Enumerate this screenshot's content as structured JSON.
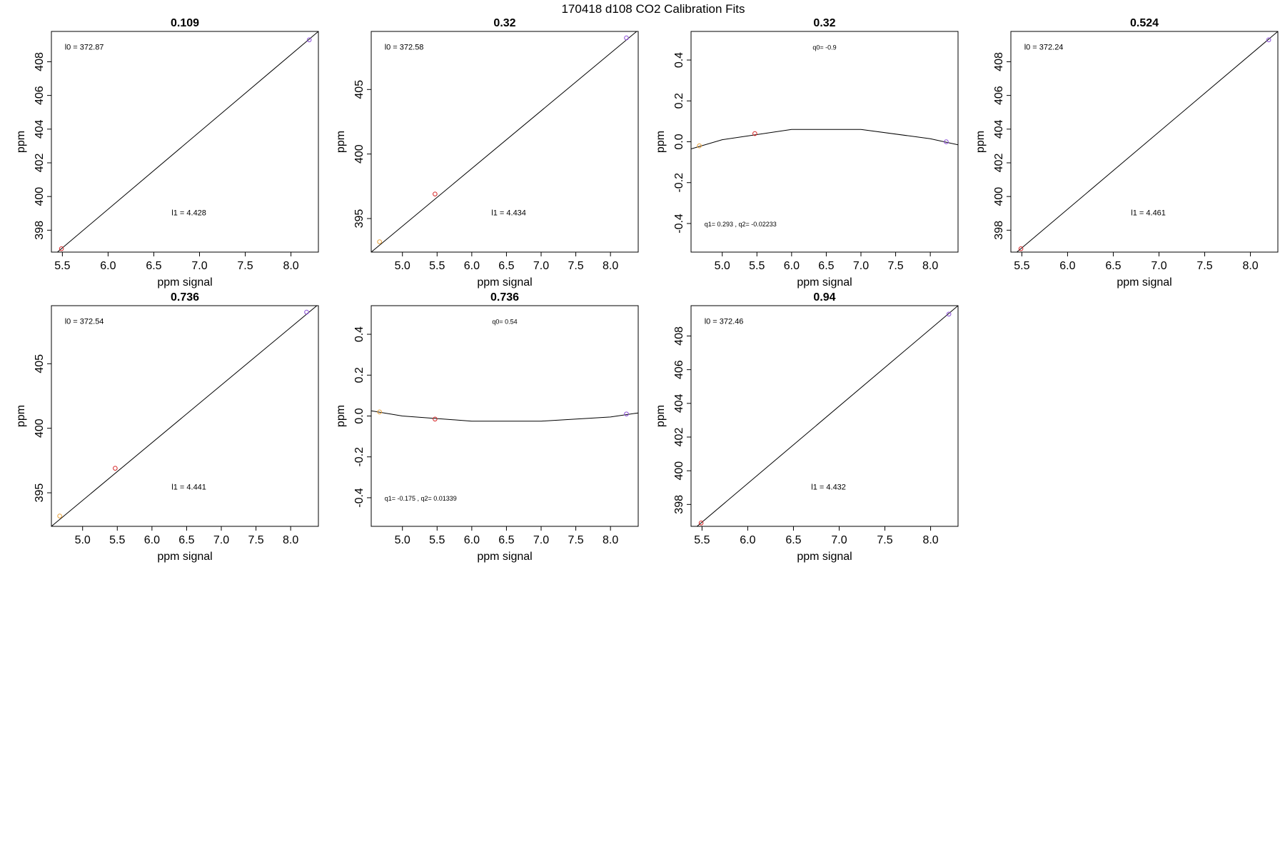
{
  "page": {
    "title": "170418   d108   CO2 Calibration Fits"
  },
  "colors": {
    "line": "#000000",
    "frame": "#000000",
    "point_orange": "#e8a23c",
    "point_red": "#d62728",
    "point_purple": "#8c4fd8"
  },
  "chart_data": [
    {
      "type": "scatter",
      "title": "0.109",
      "xlabel": "ppm signal",
      "ylabel": "ppm",
      "xlim": [
        5.38,
        8.3
      ],
      "ylim": [
        396.7,
        409.8
      ],
      "xticks": [
        "5.5",
        "6.0",
        "6.5",
        "7.0",
        "7.5",
        "8.0"
      ],
      "xtick_values": [
        5.5,
        6.0,
        6.5,
        7.0,
        7.5,
        8.0
      ],
      "yticks": [
        "398",
        "400",
        "402",
        "404",
        "406",
        "408"
      ],
      "ytick_values": [
        398,
        400,
        402,
        404,
        406,
        408
      ],
      "points": [
        {
          "x": 5.49,
          "y": 396.9,
          "color": "red"
        },
        {
          "x": 8.2,
          "y": 409.3,
          "color": "purple"
        }
      ],
      "fit_line": {
        "kind": "linear",
        "x": [
          5.38,
          8.3
        ],
        "y": [
          396.4,
          409.8
        ]
      },
      "annotations": [
        {
          "text": "l0 =  372.87",
          "size": "lg",
          "ax": 0.05,
          "ay": 0.07
        },
        {
          "text": "l1 =  4.428",
          "size": "lg",
          "ax": 0.45,
          "ay": 0.82
        }
      ]
    },
    {
      "type": "scatter",
      "title": "0.32",
      "xlabel": "ppm signal",
      "ylabel": "ppm",
      "xlim": [
        4.55,
        8.4
      ],
      "ylim": [
        392.4,
        409.5
      ],
      "xticks": [
        "5.0",
        "5.5",
        "6.0",
        "6.5",
        "7.0",
        "7.5",
        "8.0"
      ],
      "xtick_values": [
        5.0,
        5.5,
        6.0,
        6.5,
        7.0,
        7.5,
        8.0
      ],
      "yticks": [
        "395",
        "400",
        "405"
      ],
      "ytick_values": [
        395,
        400,
        405
      ],
      "points": [
        {
          "x": 4.67,
          "y": 393.2,
          "color": "orange"
        },
        {
          "x": 5.47,
          "y": 396.9,
          "color": "red"
        },
        {
          "x": 8.23,
          "y": 409.0,
          "color": "purple"
        }
      ],
      "fit_line": {
        "kind": "linear",
        "x": [
          4.55,
          8.4
        ],
        "y": [
          392.4,
          409.6
        ]
      },
      "annotations": [
        {
          "text": "l0 =  372.58",
          "size": "lg",
          "ax": 0.05,
          "ay": 0.07
        },
        {
          "text": "l1 =  4.434",
          "size": "lg",
          "ax": 0.45,
          "ay": 0.82
        }
      ]
    },
    {
      "type": "scatter",
      "title": "0.32",
      "xlabel": "ppm signal",
      "ylabel": "ppm",
      "xlim": [
        4.55,
        8.4
      ],
      "ylim": [
        -0.54,
        0.54
      ],
      "xticks": [
        "5.0",
        "5.5",
        "6.0",
        "6.5",
        "7.0",
        "7.5",
        "8.0"
      ],
      "xtick_values": [
        5.0,
        5.5,
        6.0,
        6.5,
        7.0,
        7.5,
        8.0
      ],
      "yticks": [
        "-0.4",
        "-0.2",
        "0.0",
        "0.2",
        "0.4"
      ],
      "ytick_values": [
        -0.4,
        -0.2,
        0.0,
        0.2,
        0.4
      ],
      "points": [
        {
          "x": 4.67,
          "y": -0.02,
          "color": "orange"
        },
        {
          "x": 5.47,
          "y": 0.04,
          "color": "red"
        },
        {
          "x": 8.23,
          "y": 0.0,
          "color": "purple"
        }
      ],
      "fit_line": {
        "kind": "polyline",
        "x": [
          4.55,
          5.0,
          6.0,
          7.0,
          8.0,
          8.4
        ],
        "y": [
          -0.035,
          0.01,
          0.06,
          0.06,
          0.015,
          -0.015
        ]
      },
      "annotations": [
        {
          "text": "q0= -0.9",
          "size": "sm",
          "ax": 0.5,
          "ay": 0.07,
          "anchor": "middle"
        },
        {
          "text": "q1= 0.293 , q2= -0.02233",
          "size": "sm",
          "ax": 0.05,
          "ay": 0.87
        }
      ]
    },
    {
      "type": "scatter",
      "title": "0.524",
      "xlabel": "ppm signal",
      "ylabel": "ppm",
      "xlim": [
        5.38,
        8.3
      ],
      "ylim": [
        396.7,
        409.8
      ],
      "xticks": [
        "5.5",
        "6.0",
        "6.5",
        "7.0",
        "7.5",
        "8.0"
      ],
      "xtick_values": [
        5.5,
        6.0,
        6.5,
        7.0,
        7.5,
        8.0
      ],
      "yticks": [
        "398",
        "400",
        "402",
        "404",
        "406",
        "408"
      ],
      "ytick_values": [
        398,
        400,
        402,
        404,
        406,
        408
      ],
      "points": [
        {
          "x": 5.49,
          "y": 396.9,
          "color": "red"
        },
        {
          "x": 8.2,
          "y": 409.3,
          "color": "purple"
        }
      ],
      "fit_line": {
        "kind": "linear",
        "x": [
          5.38,
          8.3
        ],
        "y": [
          396.4,
          409.8
        ]
      },
      "annotations": [
        {
          "text": "l0 =  372.24",
          "size": "lg",
          "ax": 0.05,
          "ay": 0.07
        },
        {
          "text": "l1 =  4.461",
          "size": "lg",
          "ax": 0.45,
          "ay": 0.82
        }
      ]
    },
    {
      "type": "scatter",
      "title": "0.736",
      "xlabel": "ppm signal",
      "ylabel": "ppm",
      "xlim": [
        4.55,
        8.4
      ],
      "ylim": [
        392.4,
        409.5
      ],
      "xticks": [
        "5.0",
        "5.5",
        "6.0",
        "6.5",
        "7.0",
        "7.5",
        "8.0"
      ],
      "xtick_values": [
        5.0,
        5.5,
        6.0,
        6.5,
        7.0,
        7.5,
        8.0
      ],
      "yticks": [
        "395",
        "400",
        "405"
      ],
      "ytick_values": [
        395,
        400,
        405
      ],
      "points": [
        {
          "x": 4.67,
          "y": 393.2,
          "color": "orange"
        },
        {
          "x": 5.47,
          "y": 396.9,
          "color": "red"
        },
        {
          "x": 8.23,
          "y": 409.0,
          "color": "purple"
        }
      ],
      "fit_line": {
        "kind": "linear",
        "x": [
          4.55,
          8.4
        ],
        "y": [
          392.4,
          409.6
        ]
      },
      "annotations": [
        {
          "text": "l0 =  372.54",
          "size": "lg",
          "ax": 0.05,
          "ay": 0.07
        },
        {
          "text": "l1 =  4.441",
          "size": "lg",
          "ax": 0.45,
          "ay": 0.82
        }
      ]
    },
    {
      "type": "scatter",
      "title": "0.736",
      "xlabel": "ppm signal",
      "ylabel": "ppm",
      "xlim": [
        4.55,
        8.4
      ],
      "ylim": [
        -0.54,
        0.54
      ],
      "xticks": [
        "5.0",
        "5.5",
        "6.0",
        "6.5",
        "7.0",
        "7.5",
        "8.0"
      ],
      "xtick_values": [
        5.0,
        5.5,
        6.0,
        6.5,
        7.0,
        7.5,
        8.0
      ],
      "yticks": [
        "-0.4",
        "-0.2",
        "0.0",
        "0.2",
        "0.4"
      ],
      "ytick_values": [
        -0.4,
        -0.2,
        0.0,
        0.2,
        0.4
      ],
      "points": [
        {
          "x": 4.67,
          "y": 0.02,
          "color": "orange"
        },
        {
          "x": 5.47,
          "y": -0.015,
          "color": "red"
        },
        {
          "x": 8.23,
          "y": 0.01,
          "color": "purple"
        }
      ],
      "fit_line": {
        "kind": "polyline",
        "x": [
          4.55,
          5.0,
          6.0,
          7.0,
          8.0,
          8.4
        ],
        "y": [
          0.025,
          0.0,
          -0.025,
          -0.025,
          -0.005,
          0.015
        ]
      },
      "annotations": [
        {
          "text": "q0= 0.54",
          "size": "sm",
          "ax": 0.5,
          "ay": 0.07,
          "anchor": "middle"
        },
        {
          "text": "q1= -0.175 , q2= 0.01339",
          "size": "sm",
          "ax": 0.05,
          "ay": 0.87
        }
      ]
    },
    {
      "type": "scatter",
      "title": "0.94",
      "xlabel": "ppm signal",
      "ylabel": "ppm",
      "xlim": [
        5.38,
        8.3
      ],
      "ylim": [
        396.7,
        409.8
      ],
      "xticks": [
        "5.5",
        "6.0",
        "6.5",
        "7.0",
        "7.5",
        "8.0"
      ],
      "xtick_values": [
        5.5,
        6.0,
        6.5,
        7.0,
        7.5,
        8.0
      ],
      "yticks": [
        "398",
        "400",
        "402",
        "404",
        "406",
        "408"
      ],
      "ytick_values": [
        398,
        400,
        402,
        404,
        406,
        408
      ],
      "points": [
        {
          "x": 5.49,
          "y": 396.9,
          "color": "red"
        },
        {
          "x": 8.2,
          "y": 409.3,
          "color": "purple"
        }
      ],
      "fit_line": {
        "kind": "linear",
        "x": [
          5.38,
          8.3
        ],
        "y": [
          396.4,
          409.8
        ]
      },
      "annotations": [
        {
          "text": "l0 =  372.46",
          "size": "lg",
          "ax": 0.05,
          "ay": 0.07
        },
        {
          "text": "l1 =  4.432",
          "size": "lg",
          "ax": 0.45,
          "ay": 0.82
        }
      ]
    }
  ]
}
